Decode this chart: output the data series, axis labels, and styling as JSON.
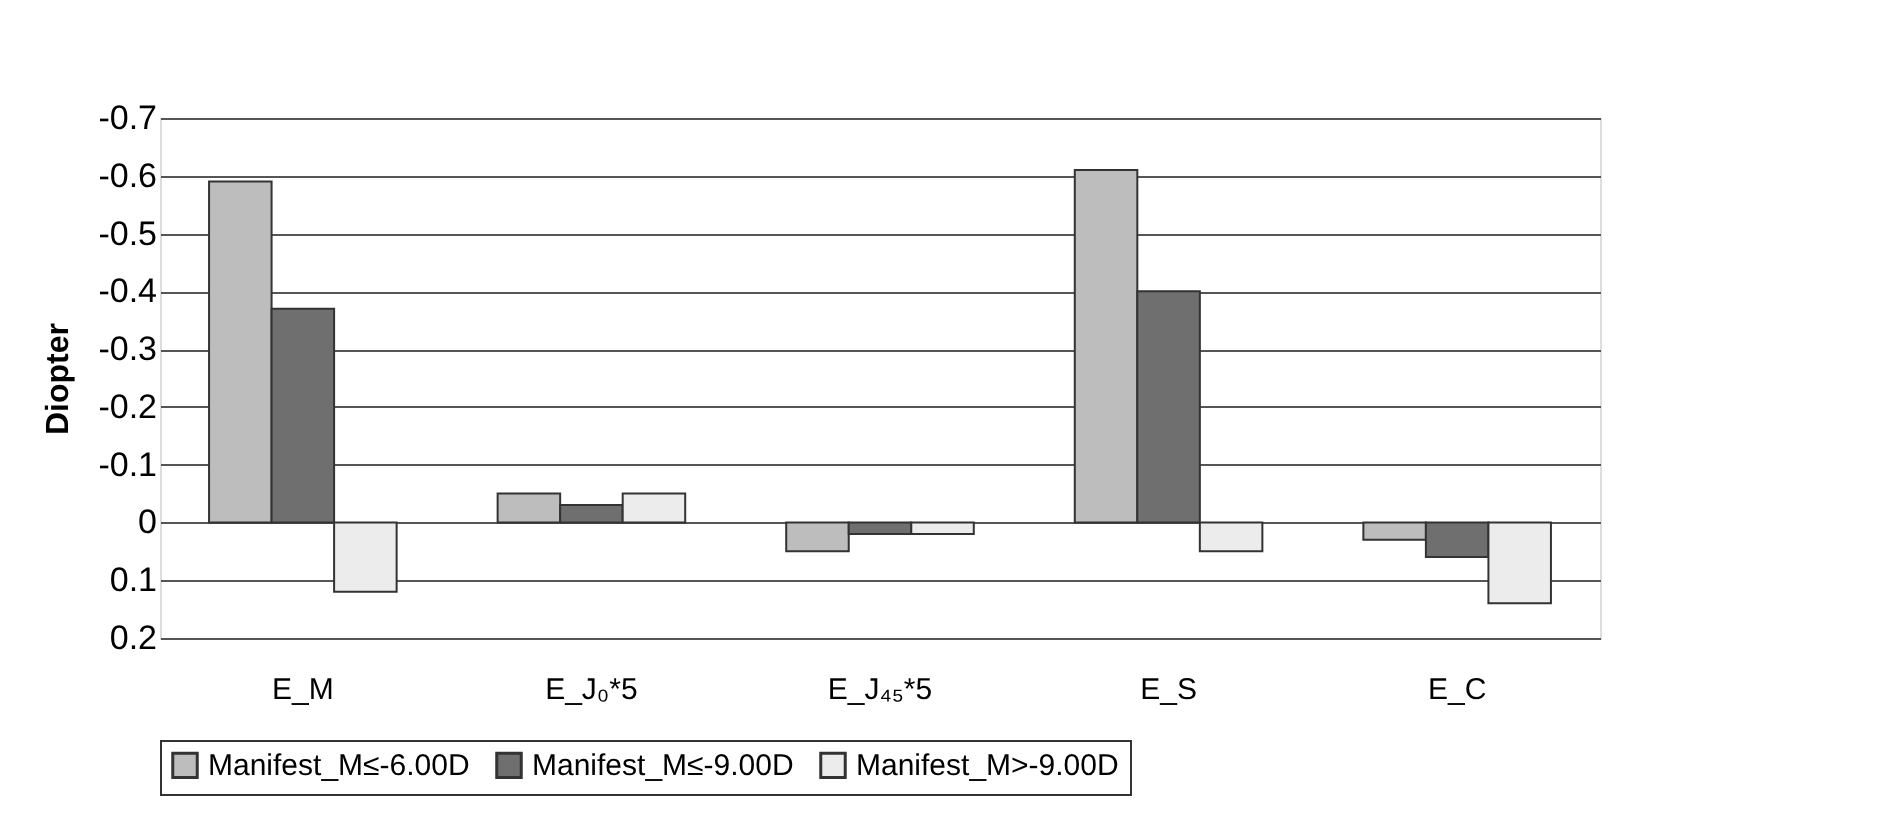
{
  "chart_data": {
    "type": "bar",
    "ylabel": "Diopter",
    "categories": [
      "E_M",
      "E_J₀*5",
      "E_J₄₅*5",
      "E_S",
      "E_C"
    ],
    "series": [
      {
        "name": "Manifest_M≤-6.00D",
        "color": "#bdbdbd",
        "values": [
          -0.59,
          -0.05,
          0.05,
          -0.61,
          0.03
        ]
      },
      {
        "name": "Manifest_M≤-9.00D",
        "color": "#6f6f6f",
        "values": [
          -0.37,
          -0.03,
          0.02,
          -0.4,
          0.06
        ]
      },
      {
        "name": "Manifest_M>-9.00D",
        "color": "#ececec",
        "values": [
          0.12,
          -0.05,
          0.02,
          0.05,
          0.14
        ]
      }
    ],
    "ylim": [
      0.2,
      -0.7
    ],
    "yticks": [
      -0.7,
      -0.6,
      -0.5,
      -0.4,
      -0.3,
      -0.2,
      -0.1,
      0,
      0.1,
      0.2
    ],
    "grid": "y",
    "legend": "bottom"
  }
}
